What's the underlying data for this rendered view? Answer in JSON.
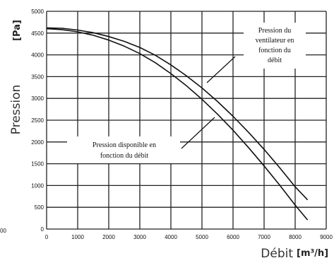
{
  "chart_data": {
    "type": "line",
    "xlabel": "Débit",
    "xunit": "[m³/h]",
    "ylabel": "Pression",
    "yunit": "[Pa]",
    "xlim": [
      0,
      9000
    ],
    "ylim": [
      0,
      5000
    ],
    "xticks": [
      "0",
      "1000",
      "2000",
      "3000",
      "4000",
      "5000",
      "6000",
      "7000",
      "8000",
      "9000"
    ],
    "yticks": [
      "0",
      "500",
      "1000",
      "1500",
      "2000",
      "2500",
      "3000",
      "3500",
      "4000",
      "4500",
      "5000"
    ],
    "grid": true,
    "stray_label": "00",
    "annotations": [
      {
        "lines": [
          "Pression du",
          "ventilateur en",
          "fonction du",
          "débit"
        ]
      },
      {
        "lines": [
          "Pression disponible en",
          "fonction du débit"
        ]
      }
    ],
    "series": [
      {
        "x": [
          0,
          500,
          1000,
          1500,
          2000,
          2500,
          3000,
          3500,
          4000,
          4500,
          5000,
          5500,
          6000,
          6500,
          7000,
          7500,
          8000,
          8400
        ],
        "y": [
          4600,
          4580,
          4530,
          4450,
          4340,
          4200,
          4030,
          3820,
          3570,
          3290,
          2980,
          2640,
          2270,
          1870,
          1450,
          1010,
          550,
          210
        ]
      },
      {
        "x": [
          0,
          500,
          1000,
          1500,
          2000,
          2500,
          3000,
          3500,
          4000,
          4500,
          5000,
          5500,
          6000,
          6500,
          7000,
          7500,
          8000,
          8400
        ],
        "y": [
          4620,
          4610,
          4570,
          4510,
          4420,
          4310,
          4170,
          3990,
          3770,
          3520,
          3240,
          2930,
          2590,
          2220,
          1830,
          1410,
          970,
          670
        ]
      }
    ]
  }
}
